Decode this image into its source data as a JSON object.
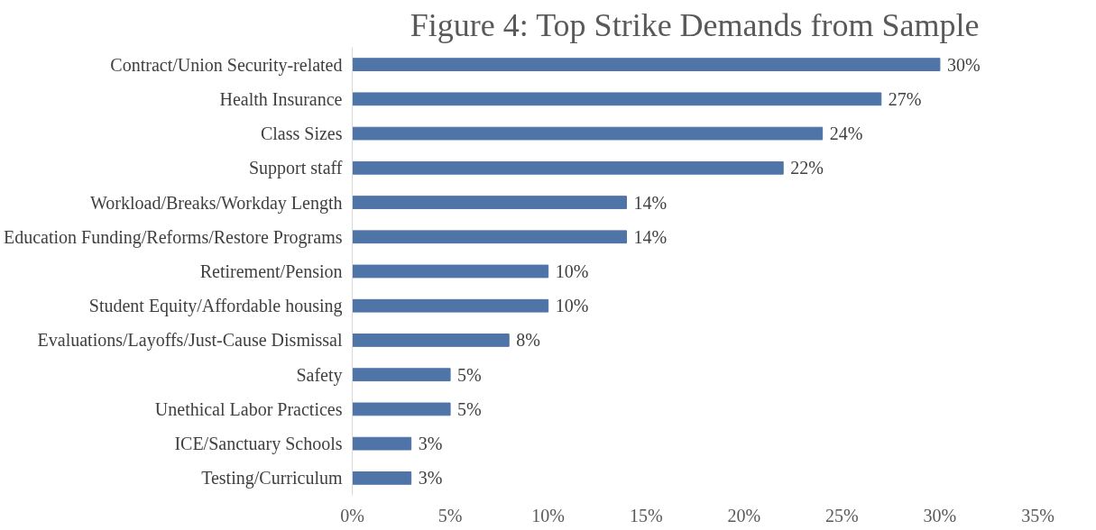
{
  "chart_data": {
    "type": "bar",
    "orientation": "horizontal",
    "title": "Figure 4: Top Strike Demands from Sample",
    "categories": [
      "Contract/Union Security-related",
      "Health Insurance",
      "Class Sizes",
      "Support staff",
      "Workload/Breaks/Workday Length",
      "Education Funding/Reforms/Restore Programs",
      "Retirement/Pension",
      "Student Equity/Affordable housing",
      "Evaluations/Layoffs/Just-Cause Dismissal",
      "Safety",
      "Unethical Labor Practices",
      "ICE/Sanctuary Schools",
      "Testing/Curriculum"
    ],
    "values": [
      30,
      27,
      24,
      22,
      14,
      14,
      10,
      10,
      8,
      5,
      5,
      3,
      3
    ],
    "value_labels": [
      "30%",
      "27%",
      "24%",
      "22%",
      "14%",
      "14%",
      "10%",
      "10%",
      "8%",
      "5%",
      "5%",
      "3%",
      "3%"
    ],
    "color": "#4f74a8",
    "xlim": [
      0,
      35
    ],
    "xticks": [
      {
        "value": 0,
        "label": "0%"
      },
      {
        "value": 5,
        "label": "5%"
      },
      {
        "value": 10,
        "label": "10%"
      },
      {
        "value": 15,
        "label": "15%"
      },
      {
        "value": 20,
        "label": "20%"
      },
      {
        "value": 25,
        "label": "25%"
      },
      {
        "value": 30,
        "label": "30%"
      },
      {
        "value": 35,
        "label": "35%"
      }
    ],
    "grid": false
  }
}
